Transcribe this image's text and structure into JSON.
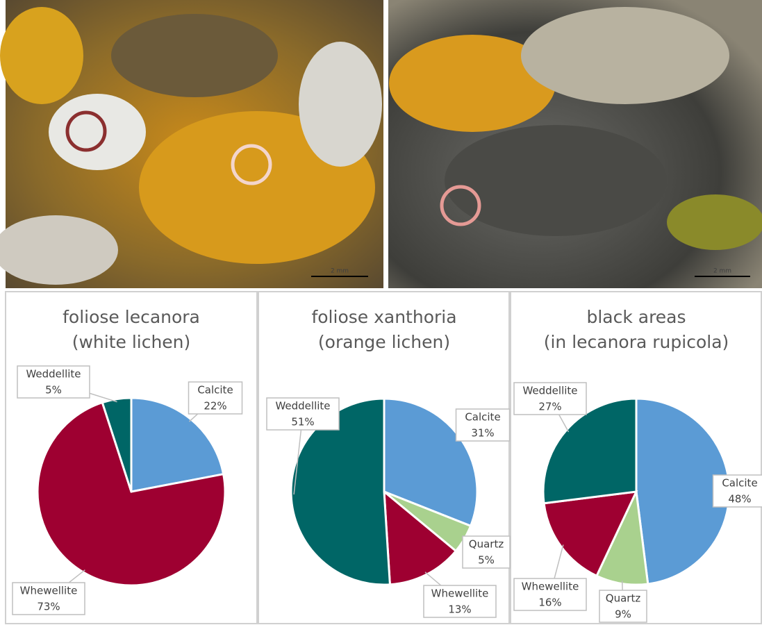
{
  "photos": [
    {
      "scale_label": "2 mm"
    },
    {
      "scale_label": "2 mm"
    }
  ],
  "chart_data": [
    {
      "type": "pie",
      "title": [
        "foliose lecanora",
        "(white lichen)"
      ],
      "categories": [
        "Calcite",
        "Whewellite",
        "Weddellite"
      ],
      "values": [
        22,
        73,
        5
      ],
      "value_labels": [
        "22%",
        "73%",
        "5%"
      ],
      "colors": [
        "#5b9bd5",
        "#9e0031",
        "#006666"
      ]
    },
    {
      "type": "pie",
      "title": [
        "foliose xanthoria",
        "(orange lichen)"
      ],
      "categories": [
        "Calcite",
        "Quartz",
        "Whewellite",
        "Weddellite"
      ],
      "values": [
        31,
        5,
        13,
        51
      ],
      "value_labels": [
        "31%",
        "5%",
        "13%",
        "51%"
      ],
      "colors": [
        "#5b9bd5",
        "#a9d18e",
        "#9e0031",
        "#006666"
      ]
    },
    {
      "type": "pie",
      "title": [
        "black areas",
        "(in lecanora rupicola)"
      ],
      "categories": [
        "Calcite",
        "Quartz",
        "Whewellite",
        "Weddellite"
      ],
      "values": [
        48,
        9,
        16,
        27
      ],
      "value_labels": [
        "48%",
        "9%",
        "16%",
        "27%"
      ],
      "colors": [
        "#5b9bd5",
        "#a9d18e",
        "#9e0031",
        "#006666"
      ]
    }
  ]
}
